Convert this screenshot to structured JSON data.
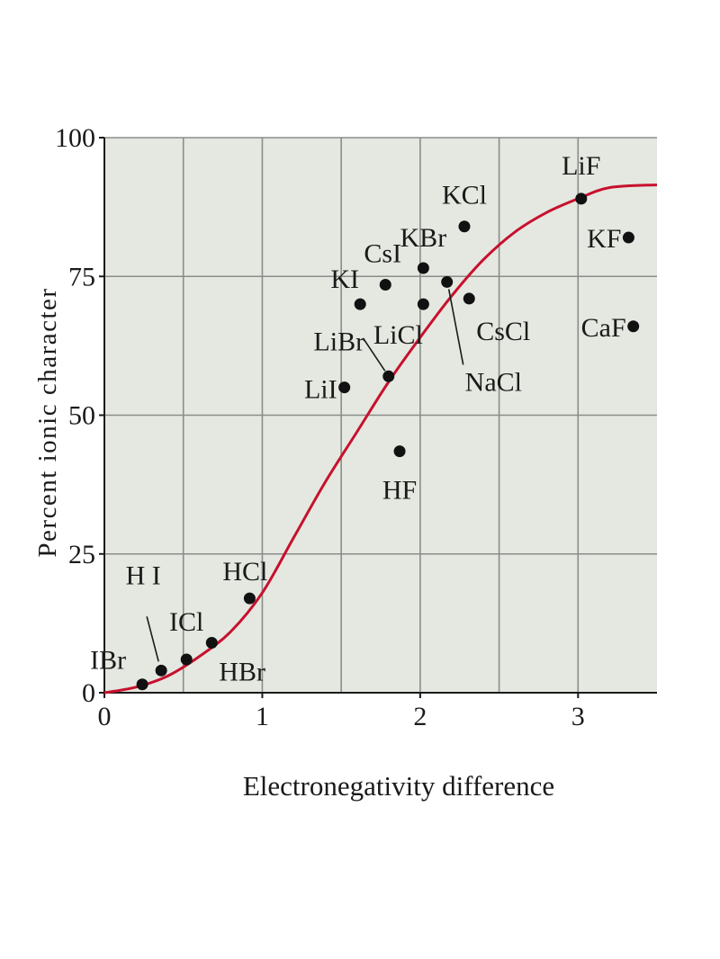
{
  "chart_data": {
    "type": "scatter",
    "xlabel": "Electronegativity difference",
    "ylabel": "Percent ionic character",
    "xlim": [
      0,
      3.5
    ],
    "ylim": [
      0,
      100
    ],
    "x_ticks": [
      0,
      1,
      2,
      3
    ],
    "x_tick_labels": [
      "0",
      "1",
      "2",
      "3"
    ],
    "y_ticks": [
      0,
      25,
      50,
      75,
      100
    ],
    "y_tick_labels": [
      "0",
      "25",
      "50",
      "75",
      "100"
    ],
    "grid": true,
    "background_color": "#e4e8e0",
    "curve_color": "#c8102e",
    "point_color": "#111111",
    "curve": {
      "x": [
        0,
        0.2,
        0.4,
        0.6,
        0.8,
        1.0,
        1.2,
        1.4,
        1.6,
        1.8,
        2.0,
        2.2,
        2.4,
        2.6,
        2.8,
        3.0,
        3.2,
        3.5
      ],
      "y": [
        0,
        1,
        3,
        6.5,
        11,
        18,
        28,
        38,
        47,
        56,
        64,
        71.5,
        78,
        83,
        86.5,
        89,
        91,
        91.5
      ]
    },
    "points": [
      {
        "label": "IBr",
        "x": 0.24,
        "y": 1.5
      },
      {
        "label": "H I",
        "x": 0.36,
        "y": 4
      },
      {
        "label": "ICl",
        "x": 0.52,
        "y": 6
      },
      {
        "label": "HBr",
        "x": 0.68,
        "y": 9
      },
      {
        "label": "HCl",
        "x": 0.92,
        "y": 17
      },
      {
        "label": "LiI",
        "x": 1.52,
        "y": 55
      },
      {
        "label": "KI",
        "x": 1.62,
        "y": 70
      },
      {
        "label": "LiBr",
        "x": 1.8,
        "y": 57
      },
      {
        "label": "CsI",
        "x": 1.78,
        "y": 73.5
      },
      {
        "label": "HF",
        "x": 1.87,
        "y": 43.5
      },
      {
        "label": "KBr",
        "x": 2.02,
        "y": 76.5
      },
      {
        "label": "LiCl",
        "x": 2.02,
        "y": 70
      },
      {
        "label": "NaCl",
        "x": 2.17,
        "y": 74
      },
      {
        "label": "KCl",
        "x": 2.28,
        "y": 84
      },
      {
        "label": "CsCl",
        "x": 2.31,
        "y": 71
      },
      {
        "label": "LiF",
        "x": 3.02,
        "y": 89
      },
      {
        "label": "KF",
        "x": 3.32,
        "y": 82
      },
      {
        "label": "CaF",
        "x": 3.35,
        "y": 66
      }
    ]
  }
}
